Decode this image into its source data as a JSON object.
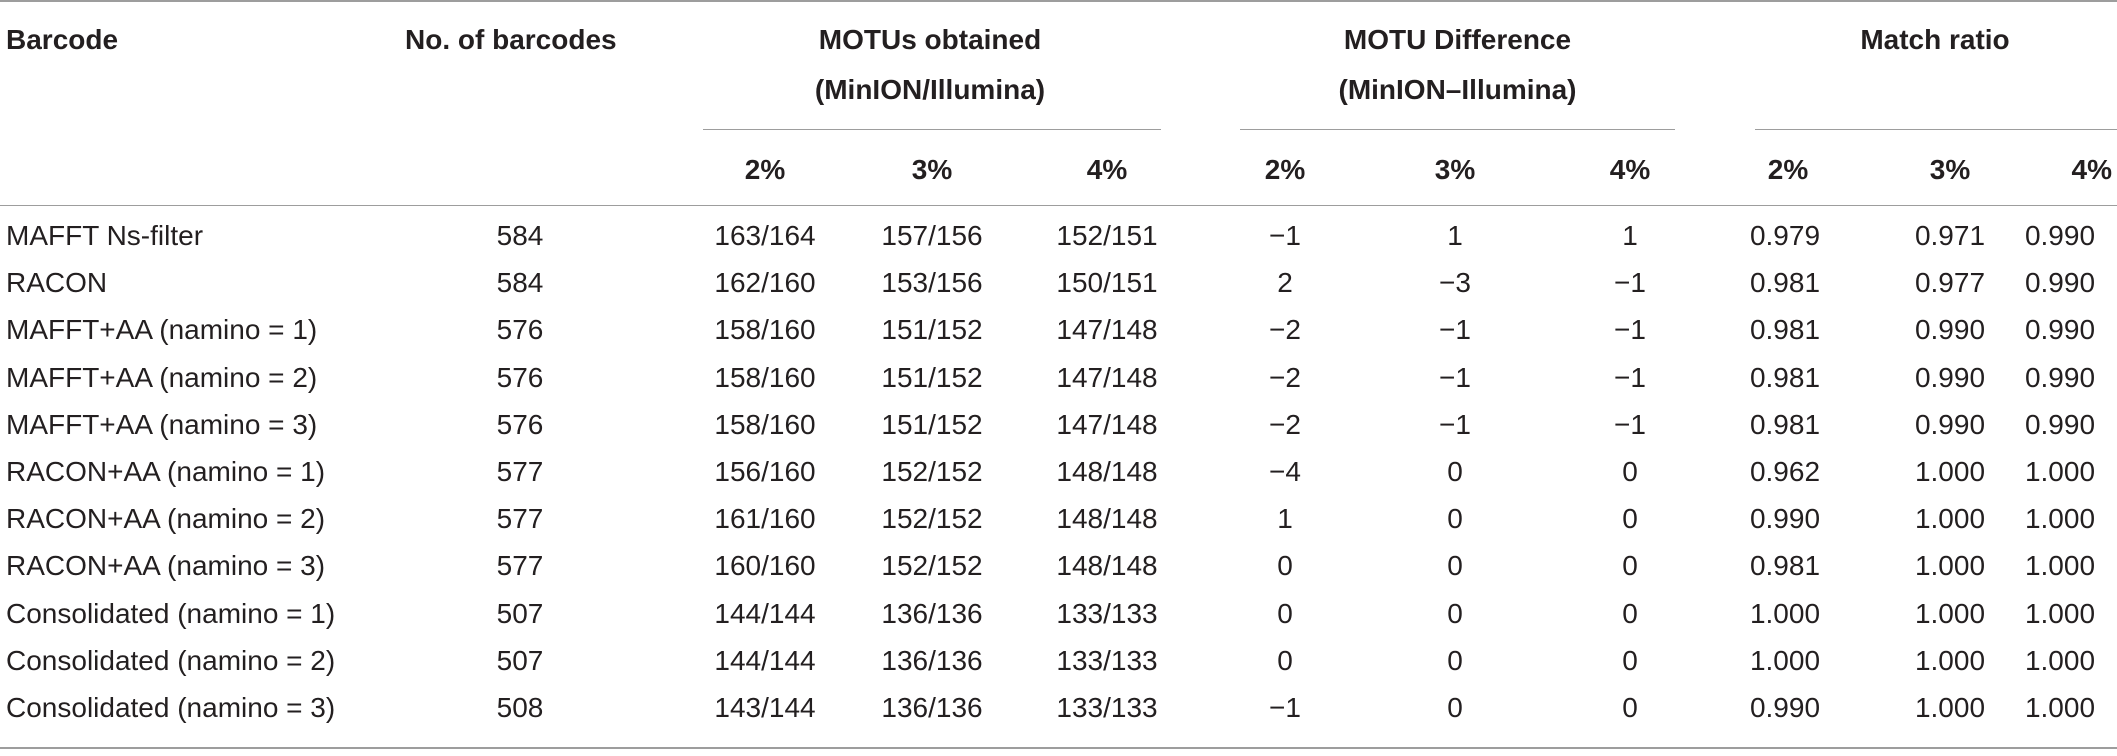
{
  "table": {
    "headers": {
      "barcode": "Barcode",
      "num_barcodes": "No. of barcodes",
      "motus_obtained_line1": "MOTUs obtained",
      "motus_obtained_line2": "(MinION/Illumina)",
      "motu_difference_line1": "MOTU Difference",
      "motu_difference_line2": "(MinION–Illumina)",
      "match_ratio": "Match ratio",
      "sub": [
        "2%",
        "3%",
        "4%",
        "2%",
        "3%",
        "4%",
        "2%",
        "3%",
        "4%"
      ]
    },
    "rows": [
      [
        "MAFFT Ns-filter",
        "584",
        "163/164",
        "157/156",
        "152/151",
        "−1",
        "1",
        "1",
        "0.979",
        "0.971",
        "0.990"
      ],
      [
        "RACON",
        "584",
        "162/160",
        "153/156",
        "150/151",
        "2",
        "−3",
        "−1",
        "0.981",
        "0.977",
        "0.990"
      ],
      [
        "MAFFT+AA (namino = 1)",
        "576",
        "158/160",
        "151/152",
        "147/148",
        "−2",
        "−1",
        "−1",
        "0.981",
        "0.990",
        "0.990"
      ],
      [
        "MAFFT+AA (namino = 2)",
        "576",
        "158/160",
        "151/152",
        "147/148",
        "−2",
        "−1",
        "−1",
        "0.981",
        "0.990",
        "0.990"
      ],
      [
        "MAFFT+AA (namino = 3)",
        "576",
        "158/160",
        "151/152",
        "147/148",
        "−2",
        "−1",
        "−1",
        "0.981",
        "0.990",
        "0.990"
      ],
      [
        "RACON+AA (namino = 1)",
        "577",
        "156/160",
        "152/152",
        "148/148",
        "−4",
        "0",
        "0",
        "0.962",
        "1.000",
        "1.000"
      ],
      [
        "RACON+AA (namino = 2)",
        "577",
        "161/160",
        "152/152",
        "148/148",
        "1",
        "0",
        "0",
        "0.990",
        "1.000",
        "1.000"
      ],
      [
        "RACON+AA (namino = 3)",
        "577",
        "160/160",
        "152/152",
        "148/148",
        "0",
        "0",
        "0",
        "0.981",
        "1.000",
        "1.000"
      ],
      [
        "Consolidated (namino = 1)",
        "507",
        "144/144",
        "136/136",
        "133/133",
        "0",
        "0",
        "0",
        "1.000",
        "1.000",
        "1.000"
      ],
      [
        "Consolidated (namino = 2)",
        "507",
        "144/144",
        "136/136",
        "133/133",
        "0",
        "0",
        "0",
        "1.000",
        "1.000",
        "1.000"
      ],
      [
        "Consolidated (namino = 3)",
        "508",
        "143/144",
        "136/136",
        "133/133",
        "−1",
        "0",
        "0",
        "0.990",
        "1.000",
        "1.000"
      ]
    ]
  }
}
